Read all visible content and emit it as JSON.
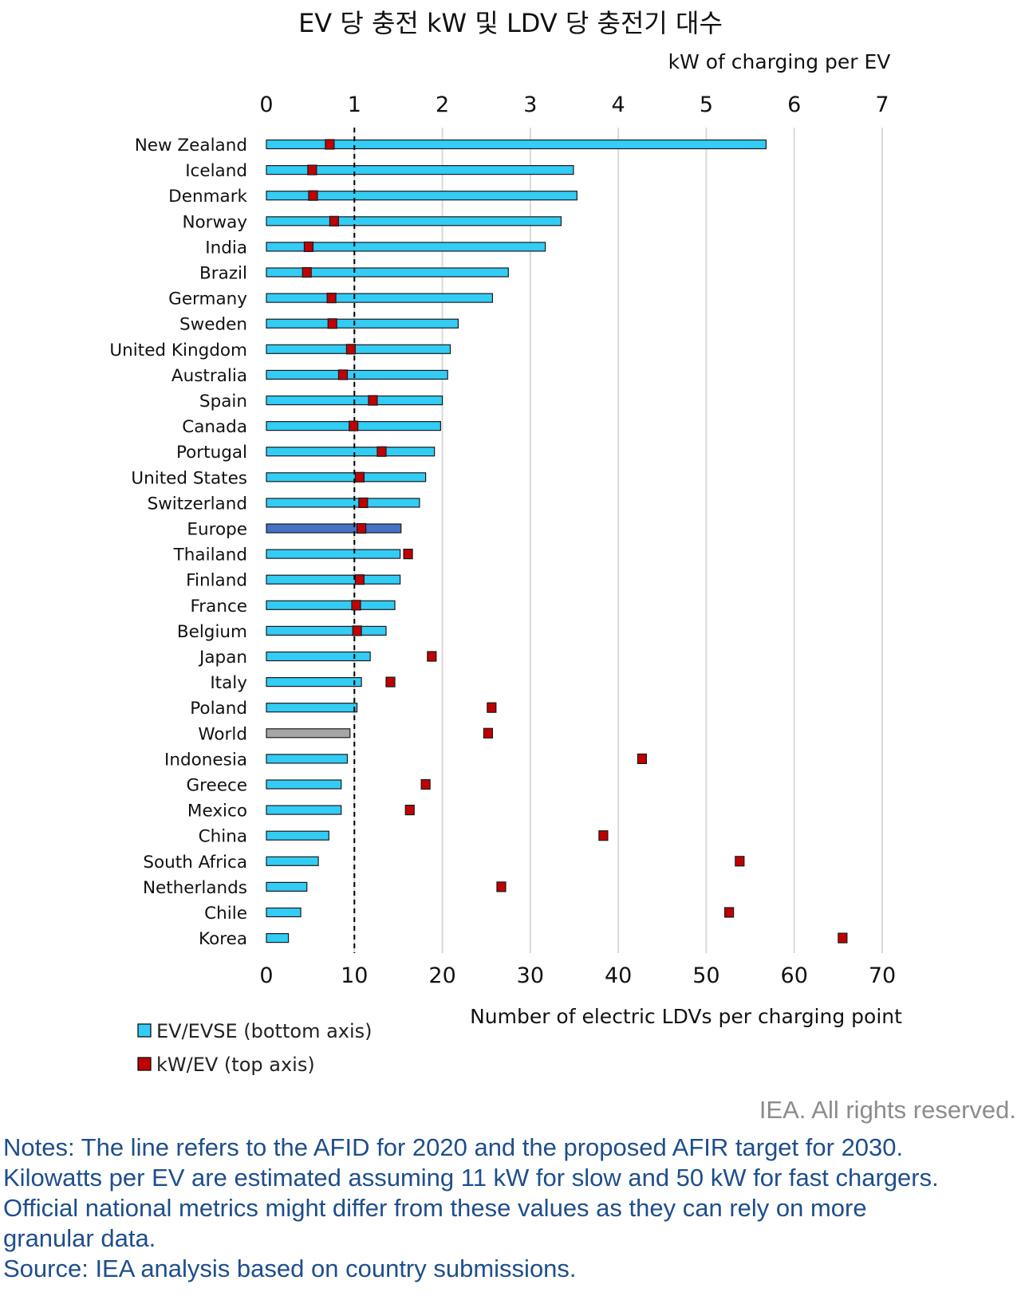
{
  "chart_data": {
    "type": "bar",
    "title": "EV 당 충전 kW 및 LDV 당 충전기 대수",
    "top_axis": {
      "label": "kW of charging per EV",
      "range": [
        0,
        7
      ],
      "ticks": [
        "0",
        "1",
        "2",
        "3",
        "4",
        "5",
        "6",
        "7"
      ]
    },
    "bottom_axis": {
      "label": "Number of electric LDVs per charging point",
      "range": [
        0,
        70
      ],
      "ticks": [
        "0",
        "10",
        "20",
        "30",
        "40",
        "50",
        "60",
        "70"
      ]
    },
    "reference_line": {
      "value": 10,
      "axis": "bottom",
      "style": "dashed"
    },
    "categories": [
      "New Zealand",
      "Iceland",
      "Denmark",
      "Norway",
      "India",
      "Brazil",
      "Germany",
      "Sweden",
      "United Kingdom",
      "Australia",
      "Spain",
      "Canada",
      "Portugal",
      "United States",
      "Switzerland",
      "Europe",
      "Thailand",
      "Finland",
      "France",
      "Belgium",
      "Japan",
      "Italy",
      "Poland",
      "World",
      "Indonesia",
      "Greece",
      "Mexico",
      "China",
      "South Africa",
      "Netherlands",
      "Chile",
      "Korea"
    ],
    "series": [
      {
        "name": "EV/EVSE (bottom axis)",
        "axis": "bottom",
        "color": "#33ccf5",
        "values": [
          56.8,
          34.9,
          35.3,
          33.5,
          31.7,
          27.5,
          25.7,
          21.8,
          20.9,
          20.6,
          20.0,
          19.8,
          19.1,
          18.1,
          17.4,
          15.3,
          15.2,
          15.2,
          14.6,
          13.6,
          11.8,
          10.8,
          10.3,
          9.5,
          9.2,
          8.5,
          8.5,
          7.1,
          5.9,
          4.6,
          3.9,
          2.5
        ],
        "highlight_colors": {
          "Europe": "#4472c4",
          "World": "#a6a6a6"
        }
      },
      {
        "name": "kW/EV (top axis)",
        "axis": "top",
        "color": "#c00000",
        "values": [
          0.72,
          0.52,
          0.53,
          0.77,
          0.48,
          0.46,
          0.74,
          0.75,
          0.96,
          0.87,
          1.21,
          0.99,
          1.31,
          1.06,
          1.1,
          1.08,
          1.61,
          1.06,
          1.02,
          1.03,
          1.88,
          1.41,
          2.56,
          2.52,
          4.27,
          1.81,
          1.63,
          3.83,
          5.38,
          2.67,
          5.26,
          6.55
        ]
      }
    ],
    "legend": {
      "position": "bottom-left"
    }
  },
  "credit": "IEA. All rights reserved.",
  "notes": [
    "Notes: The line refers to the AFID for 2020 and the proposed AFIR target for 2030.",
    "Kilowatts per EV are estimated assuming 11 kW for slow and 50 kW for fast chargers.",
    "Official national metrics might differ from these values as they can rely on more",
    "granular data.",
    "Source: IEA analysis based on country submissions."
  ]
}
